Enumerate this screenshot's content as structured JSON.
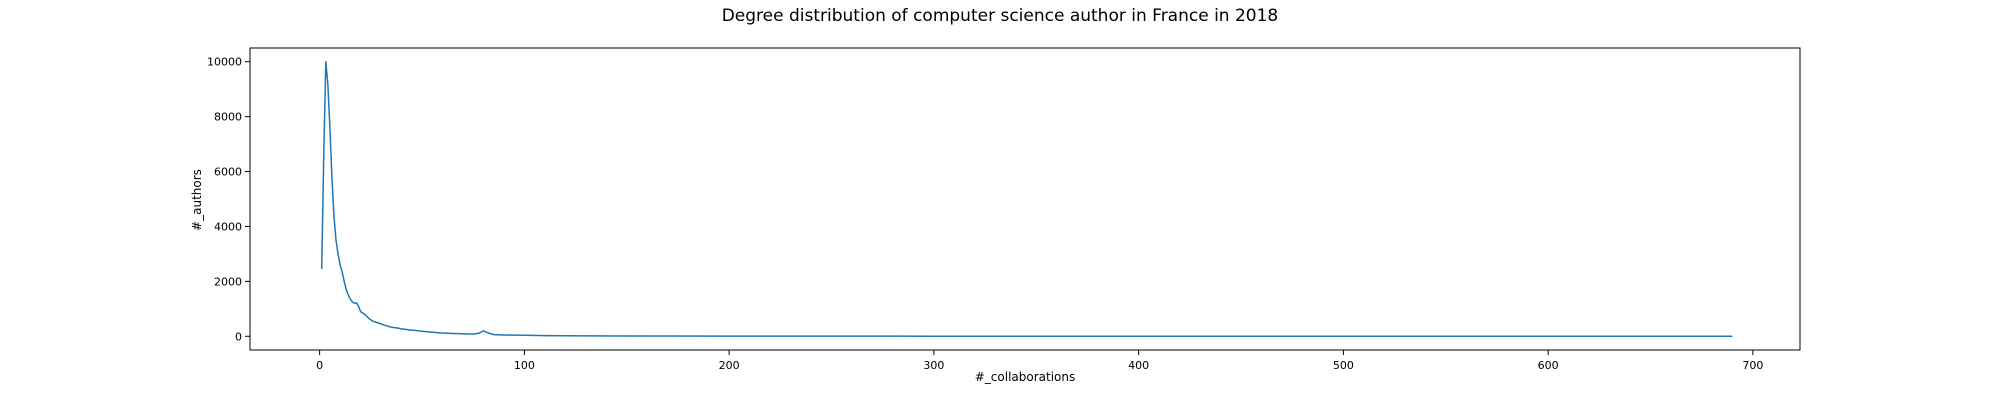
{
  "chart_data": {
    "type": "line",
    "title": "Degree distribution of computer science author in France in 2018",
    "xlabel": "#_collaborations",
    "ylabel": "#_authors",
    "xlim": [
      -34,
      723
    ],
    "ylim": [
      -500,
      10500
    ],
    "xticks": [
      0,
      100,
      200,
      300,
      400,
      500,
      600,
      700
    ],
    "yticks": [
      0,
      2000,
      4000,
      6000,
      8000,
      10000
    ],
    "grid": false,
    "legend": "none",
    "series": [
      {
        "color": "#1f77b4",
        "x": [
          1,
          2,
          3,
          4,
          5,
          6,
          7,
          8,
          9,
          10,
          11,
          12,
          13,
          14,
          15,
          16,
          17,
          18,
          19,
          20,
          22,
          24,
          26,
          28,
          30,
          32,
          34,
          36,
          38,
          40,
          42,
          44,
          46,
          48,
          50,
          55,
          60,
          65,
          70,
          75,
          78,
          80,
          82,
          85,
          90,
          100,
          110,
          120,
          130,
          150,
          200,
          300,
          400,
          500,
          600,
          690
        ],
        "y": [
          2450,
          6500,
          10000,
          9200,
          7600,
          5800,
          4400,
          3500,
          3000,
          2600,
          2350,
          2000,
          1700,
          1500,
          1350,
          1250,
          1200,
          1220,
          1100,
          900,
          800,
          650,
          550,
          500,
          450,
          400,
          350,
          320,
          300,
          270,
          250,
          230,
          220,
          200,
          180,
          150,
          120,
          100,
          90,
          80,
          120,
          200,
          130,
          60,
          45,
          35,
          25,
          20,
          15,
          10,
          6,
          3,
          2,
          1,
          1,
          1
        ]
      }
    ]
  }
}
